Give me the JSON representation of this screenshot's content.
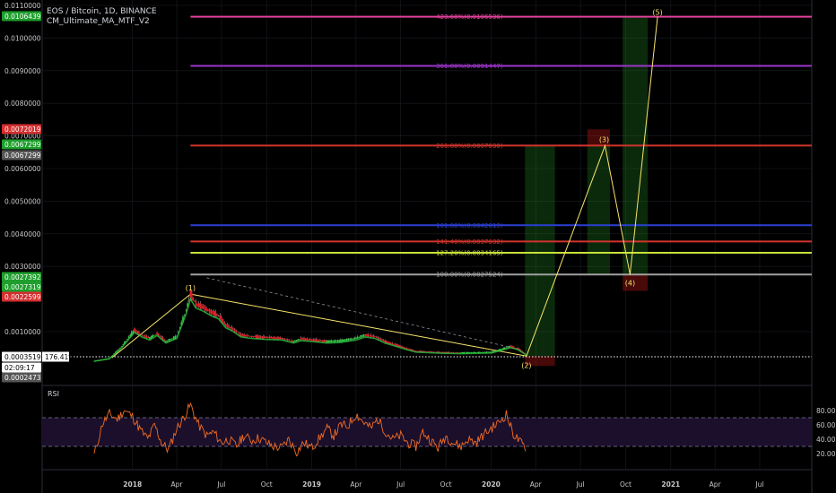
{
  "header": {
    "symbol_line": "EOS / Bitcoin, 1D, BINANCE",
    "indicator": "CM_Ultimate_MA_MTF_V2"
  },
  "rsi_panel": {
    "label": "RSI"
  },
  "colors": {
    "background": "#000000",
    "grid": "#1a1d24",
    "axis_text": "#c8c8c8",
    "candle_up": "#2ecc40",
    "candle_down": "#e0202a",
    "wave_line": "#f7e46a",
    "rsi_line": "#f36c21",
    "rsi_band": "#1b0f2b"
  },
  "chart_data": [
    {
      "type": "line",
      "panel": "price",
      "y_ticks": [
        "0.0110000",
        "0.0100000",
        "0.0090000",
        "0.0080000",
        "0.0070000",
        "0.0060000",
        "0.0050000",
        "0.0040000",
        "0.0030000",
        "0.0010000"
      ],
      "y_ticks_values": [
        0.011,
        0.01,
        0.009,
        0.008,
        0.007,
        0.006,
        0.005,
        0.004,
        0.003,
        0.001
      ],
      "x_ticks": [
        "2018",
        "Apr",
        "Jul",
        "Oct",
        "2019",
        "Apr",
        "Jul",
        "Oct",
        "2020",
        "Apr",
        "Jul",
        "Oct",
        "2021",
        "Apr",
        "Jul"
      ],
      "price_tags": [
        {
          "text": "0.0106439",
          "color": "#1e9e2c"
        },
        {
          "text": "0.0072019",
          "color": "#d32f2f"
        },
        {
          "text": "0.0067299",
          "color": "#1e9e2c"
        },
        {
          "text": "0.0067299",
          "color": "#555555"
        },
        {
          "text": "0.0027392",
          "color": "#1e9e2c"
        },
        {
          "text": "0.0027319",
          "color": "#1e9e2c"
        },
        {
          "text": "0.0022599",
          "color": "#d32f2f"
        },
        {
          "text": "0.0003519",
          "color": "#ffffff"
        },
        {
          "text": "02:09:17",
          "color": "#ffffff"
        },
        {
          "text": "0.0002473",
          "color": "#555555"
        }
      ],
      "current_price_pct": "176.41%",
      "fib_levels": [
        {
          "label": "423.60%(0.0106536)",
          "value": 0.0106536,
          "color": "#e0409a"
        },
        {
          "label": "361.80%(0.0091447)",
          "value": 0.0091447,
          "color": "#9b35c9"
        },
        {
          "label": "261.80%(0.0067030)",
          "value": 0.006703,
          "color": "#d0342c"
        },
        {
          "label": "161.80%(0.0042613)",
          "value": 0.0042613,
          "color": "#2b3fd1"
        },
        {
          "label": "141.40%(0.0037632)",
          "value": 0.0037632,
          "color": "#d0342c"
        },
        {
          "label": "127.20%(0.0034165)",
          "value": 0.0034165,
          "color": "#c8e03a"
        },
        {
          "label": "100.00%(0.0027524)",
          "value": 0.0027524,
          "color": "#a0a0a0"
        }
      ],
      "wave_points": [
        {
          "label": "(1)",
          "date": "2018-04-29",
          "price": 0.00215
        },
        {
          "label": "(2)",
          "date": "2020-03-13",
          "price": 0.00025
        },
        {
          "label": "(3)",
          "date": "2020-08-20",
          "price": 0.0067
        },
        {
          "label": "(4)",
          "date": "2020-10-10",
          "price": 0.00275
        },
        {
          "label": "(5)",
          "date": "2020-12-05",
          "price": 0.01065
        }
      ],
      "price_series": {
        "dates": [
          "2017-10-15",
          "2017-11-15",
          "2017-12-10",
          "2018-01-05",
          "2018-01-20",
          "2018-02-05",
          "2018-02-20",
          "2018-03-10",
          "2018-04-01",
          "2018-04-20",
          "2018-04-29",
          "2018-05-10",
          "2018-05-25",
          "2018-06-10",
          "2018-06-25",
          "2018-07-10",
          "2018-07-25",
          "2018-08-10",
          "2018-09-01",
          "2018-10-01",
          "2018-11-01",
          "2018-11-25",
          "2018-12-10",
          "2019-01-01",
          "2019-02-01",
          "2019-03-01",
          "2019-04-01",
          "2019-04-20",
          "2019-05-10",
          "2019-05-30",
          "2019-06-20",
          "2019-07-10",
          "2019-08-01",
          "2019-09-01",
          "2019-10-01",
          "2019-11-01",
          "2019-12-01",
          "2020-01-01",
          "2020-01-20",
          "2020-02-10",
          "2020-02-25",
          "2020-03-13"
        ],
        "values": [
          0.0001,
          0.00018,
          0.00055,
          0.00105,
          0.0009,
          0.0008,
          0.00095,
          0.0007,
          0.00085,
          0.00165,
          0.00215,
          0.00185,
          0.00175,
          0.0016,
          0.0015,
          0.0012,
          0.00108,
          0.0009,
          0.00085,
          0.00082,
          0.0008,
          0.0007,
          0.00078,
          0.00075,
          0.0007,
          0.00072,
          0.0008,
          0.0009,
          0.00085,
          0.0007,
          0.0006,
          0.0005,
          0.0004,
          0.00038,
          0.00036,
          0.00035,
          0.00036,
          0.00037,
          0.00045,
          0.00055,
          0.00048,
          0.0003
        ]
      },
      "trendlines": [
        {
          "from": {
            "date": "2017-11-20",
            "price": 0.0002
          },
          "to": {
            "date": "2018-04-29",
            "price": 0.00215
          }
        },
        {
          "from": {
            "date": "2018-04-29",
            "price": 0.00215
          },
          "to": {
            "date": "2020-03-13",
            "price": 0.00025
          }
        }
      ],
      "projection_boxes": [
        {
          "from_date": "2020-03-10",
          "to_date": "2020-05-10",
          "low": 0.00025,
          "high": 0.0067,
          "color": "green"
        },
        {
          "from_date": "2020-03-10",
          "to_date": "2020-05-10",
          "low": -5e-05,
          "high": 0.00025,
          "color": "red"
        },
        {
          "from_date": "2020-07-15",
          "to_date": "2020-08-30",
          "low": 0.00275,
          "high": 0.0067,
          "color": "green"
        },
        {
          "from_date": "2020-07-15",
          "to_date": "2020-08-30",
          "low": 0.0067,
          "high": 0.0072,
          "color": "red"
        },
        {
          "from_date": "2020-09-25",
          "to_date": "2020-11-15",
          "low": 0.00275,
          "high": 0.01065,
          "color": "green"
        },
        {
          "from_date": "2020-09-25",
          "to_date": "2020-11-15",
          "low": 0.00225,
          "high": 0.00275,
          "color": "red"
        }
      ]
    },
    {
      "type": "line",
      "panel": "rsi",
      "y_ticks": [
        "80.00",
        "60.00",
        "40.00",
        "20.00"
      ],
      "y_ticks_values": [
        80,
        60,
        40,
        20
      ],
      "bands": {
        "upper": 70,
        "lower": 30
      },
      "series": [
        {
          "dates": [
            "2017-10-15",
            "2017-11-01",
            "2017-11-15",
            "2017-12-01",
            "2017-12-15",
            "2018-01-01",
            "2018-01-15",
            "2018-02-01",
            "2018-02-15",
            "2018-03-01",
            "2018-03-15",
            "2018-04-01",
            "2018-04-15",
            "2018-04-29",
            "2018-05-15",
            "2018-06-01",
            "2018-06-15",
            "2018-07-01",
            "2018-07-15",
            "2018-08-01",
            "2018-08-15",
            "2018-09-01",
            "2018-09-15",
            "2018-10-01",
            "2018-10-15",
            "2018-11-01",
            "2018-11-15",
            "2018-12-01",
            "2018-12-15",
            "2019-01-01",
            "2019-01-15",
            "2019-02-01",
            "2019-02-15",
            "2019-03-01",
            "2019-03-15",
            "2019-04-01",
            "2019-04-15",
            "2019-05-01",
            "2019-05-15",
            "2019-06-01",
            "2019-06-15",
            "2019-07-01",
            "2019-07-15",
            "2019-08-01",
            "2019-08-15",
            "2019-09-01",
            "2019-09-15",
            "2019-10-01",
            "2019-10-15",
            "2019-11-01",
            "2019-11-15",
            "2019-12-01",
            "2019-12-15",
            "2020-01-01",
            "2020-01-15",
            "2020-02-01",
            "2020-02-15",
            "2020-03-01",
            "2020-03-13"
          ],
          "values": [
            18,
            62,
            75,
            68,
            80,
            72,
            55,
            40,
            60,
            35,
            25,
            55,
            70,
            88,
            60,
            45,
            50,
            35,
            40,
            30,
            45,
            38,
            42,
            35,
            30,
            28,
            40,
            22,
            35,
            28,
            40,
            55,
            45,
            60,
            58,
            75,
            65,
            55,
            68,
            50,
            40,
            45,
            35,
            30,
            50,
            38,
            28,
            45,
            35,
            30,
            40,
            35,
            45,
            55,
            62,
            75,
            48,
            35,
            28
          ]
        }
      ]
    }
  ]
}
